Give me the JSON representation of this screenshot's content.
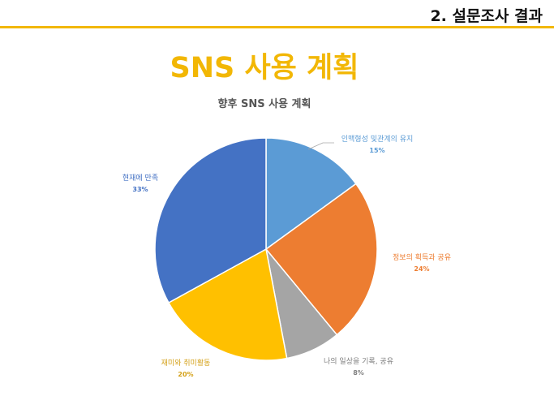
{
  "header": {
    "section_title": "2. 설문조사 결과"
  },
  "slide_title": "SNS 사용 계획",
  "chart_data": {
    "type": "pie",
    "title": "향후 SNS 사용 계획",
    "start_angle_deg": 0,
    "direction": "clockwise",
    "slices": [
      {
        "label": "인맥형성 및관계의 유지",
        "value": 15,
        "pct_label": "15%",
        "color": "#5b9bd5"
      },
      {
        "label": "정보의 획득과 공유",
        "value": 24,
        "pct_label": "24%",
        "color": "#ed7d31"
      },
      {
        "label": "나의 일상을 기록, 공유",
        "value": 8,
        "pct_label": "8%",
        "color": "#a5a5a5"
      },
      {
        "label": "재미와 취미활동",
        "value": 20,
        "pct_label": "20%",
        "color": "#ffc000"
      },
      {
        "label": "현재에 만족",
        "value": 33,
        "pct_label": "33%",
        "color": "#4472c4"
      }
    ]
  },
  "colors": {
    "accent": "#f2b705",
    "rule": "#f2b705"
  }
}
